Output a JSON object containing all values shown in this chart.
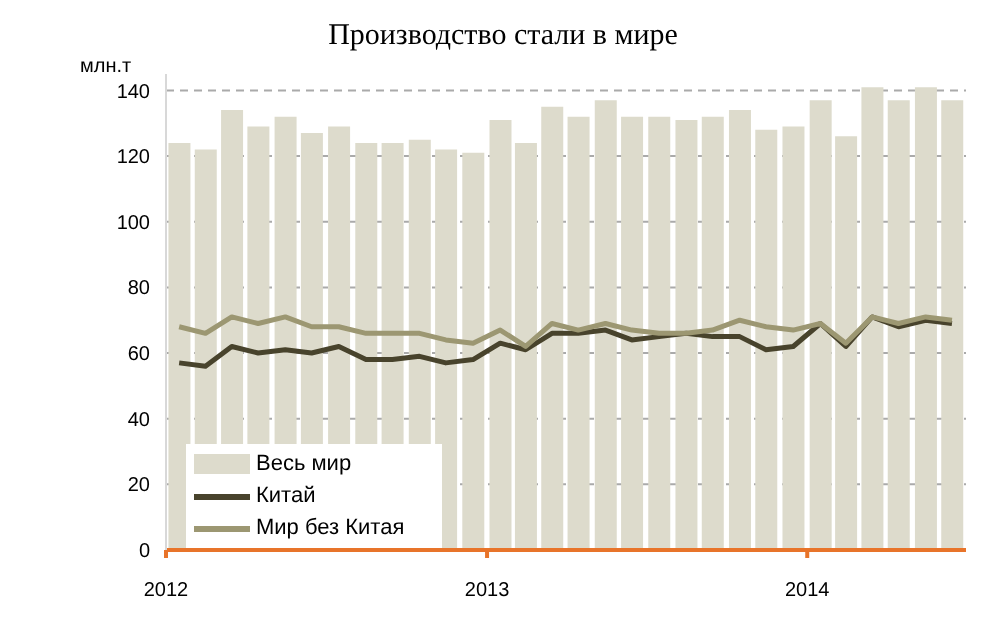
{
  "chart_data": {
    "type": "bar",
    "title": "Производство стали в мире",
    "ylabel": "млн.т",
    "x": [
      "2012-01-16",
      "2012-02-15",
      "2012-03-16",
      "2012-04-15",
      "2012-05-16",
      "2012-06-15",
      "2012-07-16",
      "2012-08-16",
      "2012-09-15",
      "2012-10-16",
      "2012-11-15",
      "2012-12-16",
      "2013-01-16",
      "2013-02-14",
      "2013-03-16",
      "2013-04-15",
      "2013-05-16",
      "2013-06-15",
      "2013-07-16",
      "2013-08-16",
      "2013-09-15",
      "2013-10-16",
      "2013-11-15",
      "2013-12-16",
      "2014-01-16",
      "2014-02-14",
      "2014-03-16",
      "2014-04-15",
      "2014-05-16",
      "2014-06-15"
    ],
    "series": [
      {
        "name": "Весь мир",
        "color": "#dddbcc",
        "values": [
          124,
          122,
          134,
          129,
          132,
          127,
          129,
          124,
          124,
          125,
          122,
          121,
          131,
          124,
          135,
          132,
          137,
          132,
          132,
          131,
          132,
          134,
          128,
          129,
          137,
          126,
          141,
          137,
          141,
          137
        ]
      },
      {
        "name": "Китай",
        "type": "line",
        "color": "#48432c",
        "values": [
          57,
          56,
          62,
          60,
          61,
          60,
          62,
          58,
          58,
          59,
          57,
          58,
          63,
          61,
          66,
          66,
          67,
          64,
          65,
          66,
          65,
          65,
          61,
          62,
          69,
          62,
          71,
          68,
          70,
          69
        ]
      },
      {
        "name": "Мир без Китая",
        "type": "line",
        "color": "#9c9772",
        "values": [
          68,
          66,
          71,
          69,
          71,
          68,
          68,
          66,
          66,
          66,
          64,
          63,
          67,
          62,
          69,
          67,
          69,
          67,
          66,
          66,
          67,
          70,
          68,
          67,
          69,
          63,
          71,
          69,
          71,
          70
        ]
      }
    ],
    "xlim": [
      "2012-01-01",
      "2014-07-01"
    ],
    "xticks": [
      "2012",
      "2013",
      "2014"
    ],
    "ylim": [
      0,
      145
    ],
    "yticks": [
      0,
      20,
      40,
      60,
      80,
      100,
      120,
      140
    ],
    "grid": "y",
    "legend": "bottom left"
  }
}
